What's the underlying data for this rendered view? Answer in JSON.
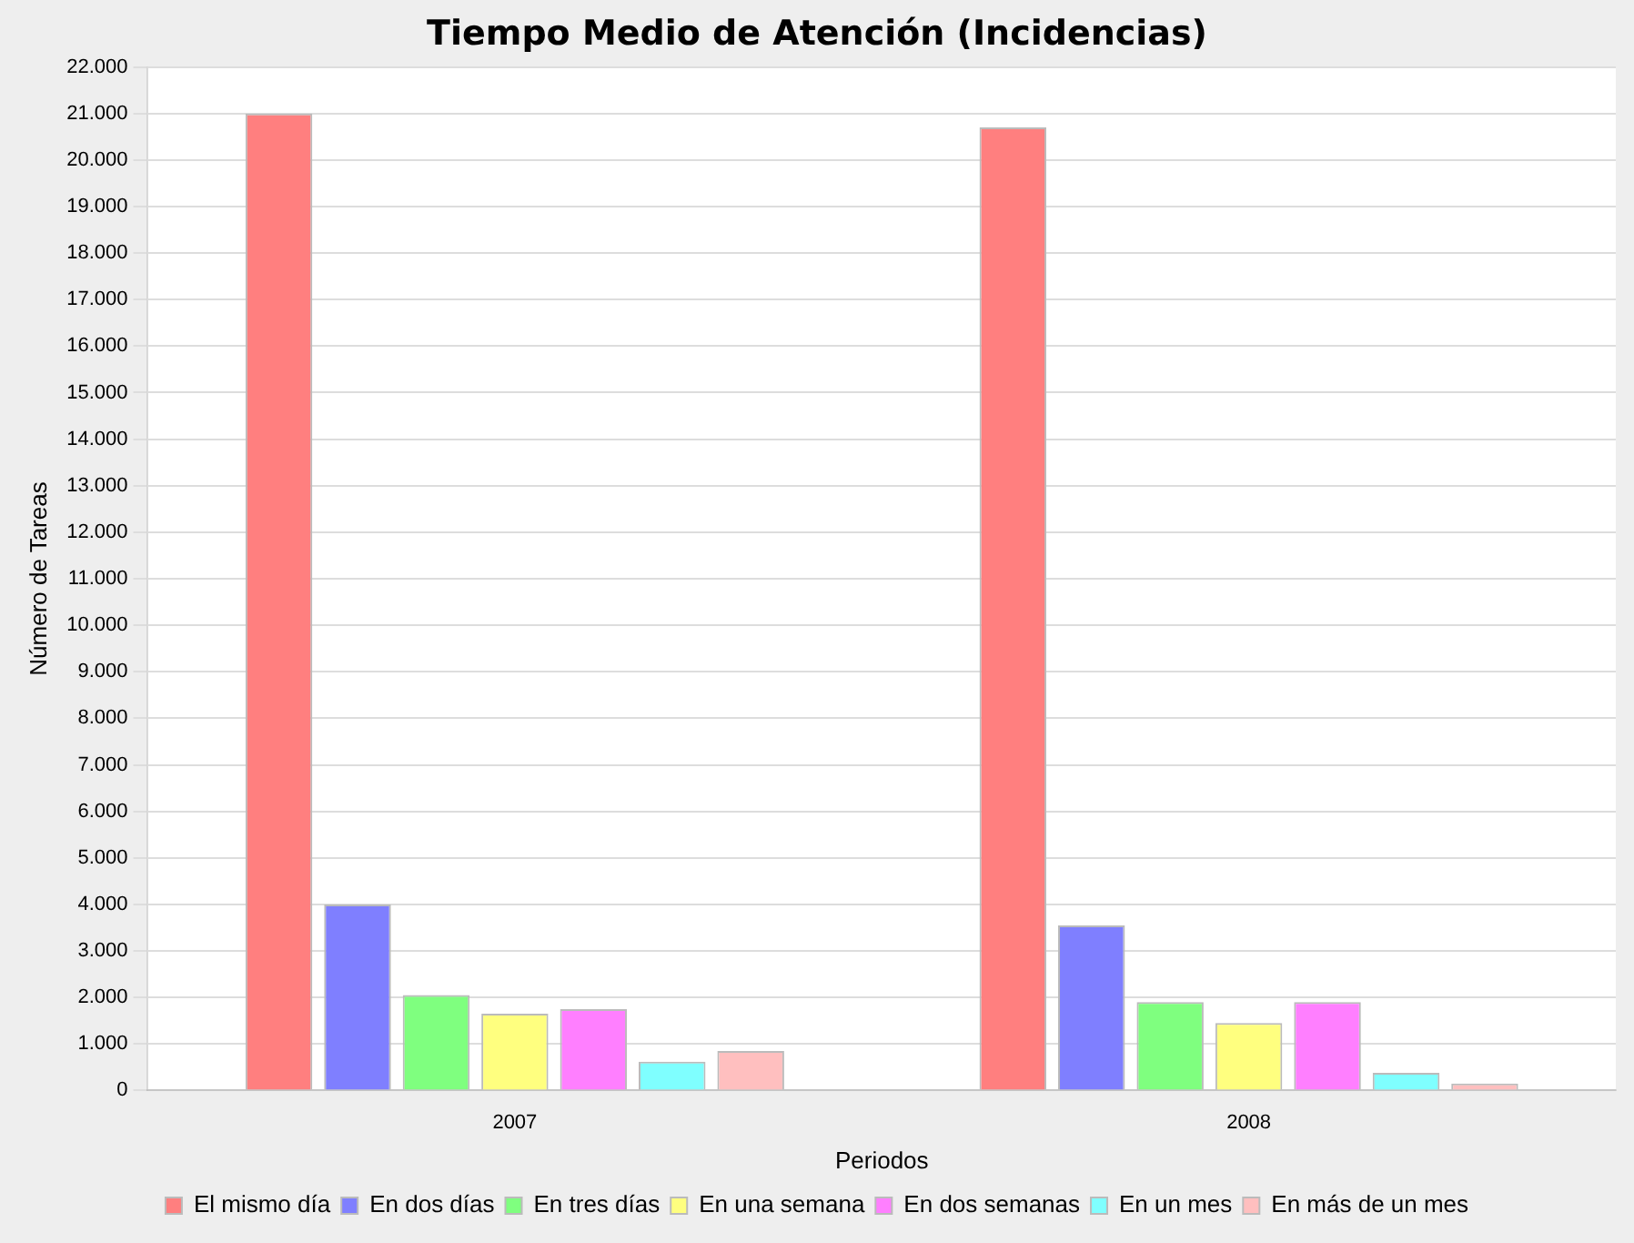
{
  "chart_data": {
    "type": "bar",
    "title": "Tiempo Medio de Atención (Incidencias)",
    "xlabel": "Periodos",
    "ylabel": "Número de Tareas",
    "categories": [
      "2007",
      "2008"
    ],
    "series": [
      {
        "name": "El mismo día",
        "color": "#ff7f7f",
        "values": [
          21000,
          20700
        ]
      },
      {
        "name": "En dos días",
        "color": "#7f7fff",
        "values": [
          4000,
          3550
        ]
      },
      {
        "name": "En tres días",
        "color": "#7fff7f",
        "values": [
          2050,
          1900
        ]
      },
      {
        "name": "En una semana",
        "color": "#ffff7f",
        "values": [
          1650,
          1450
        ]
      },
      {
        "name": "En dos semanas",
        "color": "#ff7fff",
        "values": [
          1750,
          1900
        ]
      },
      {
        "name": "En un mes",
        "color": "#7fffff",
        "values": [
          620,
          380
        ]
      },
      {
        "name": "En más de un mes",
        "color": "#ffbfbf",
        "values": [
          850,
          150
        ]
      }
    ],
    "ylim": [
      0,
      22000
    ],
    "yticks": [
      {
        "value": 0,
        "label": "0"
      },
      {
        "value": 1000,
        "label": "1.000"
      },
      {
        "value": 2000,
        "label": "2.000"
      },
      {
        "value": 3000,
        "label": "3.000"
      },
      {
        "value": 4000,
        "label": "4.000"
      },
      {
        "value": 5000,
        "label": "5.000"
      },
      {
        "value": 6000,
        "label": "6.000"
      },
      {
        "value": 7000,
        "label": "7.000"
      },
      {
        "value": 8000,
        "label": "8.000"
      },
      {
        "value": 9000,
        "label": "9.000"
      },
      {
        "value": 10000,
        "label": "10.000"
      },
      {
        "value": 11000,
        "label": "11.000"
      },
      {
        "value": 12000,
        "label": "12.000"
      },
      {
        "value": 13000,
        "label": "13.000"
      },
      {
        "value": 14000,
        "label": "14.000"
      },
      {
        "value": 15000,
        "label": "15.000"
      },
      {
        "value": 16000,
        "label": "16.000"
      },
      {
        "value": 17000,
        "label": "17.000"
      },
      {
        "value": 18000,
        "label": "18.000"
      },
      {
        "value": 19000,
        "label": "19.000"
      },
      {
        "value": 20000,
        "label": "20.000"
      },
      {
        "value": 21000,
        "label": "21.000"
      },
      {
        "value": 22000,
        "label": "22.000"
      }
    ],
    "grid": "y",
    "legend": "bottom"
  }
}
